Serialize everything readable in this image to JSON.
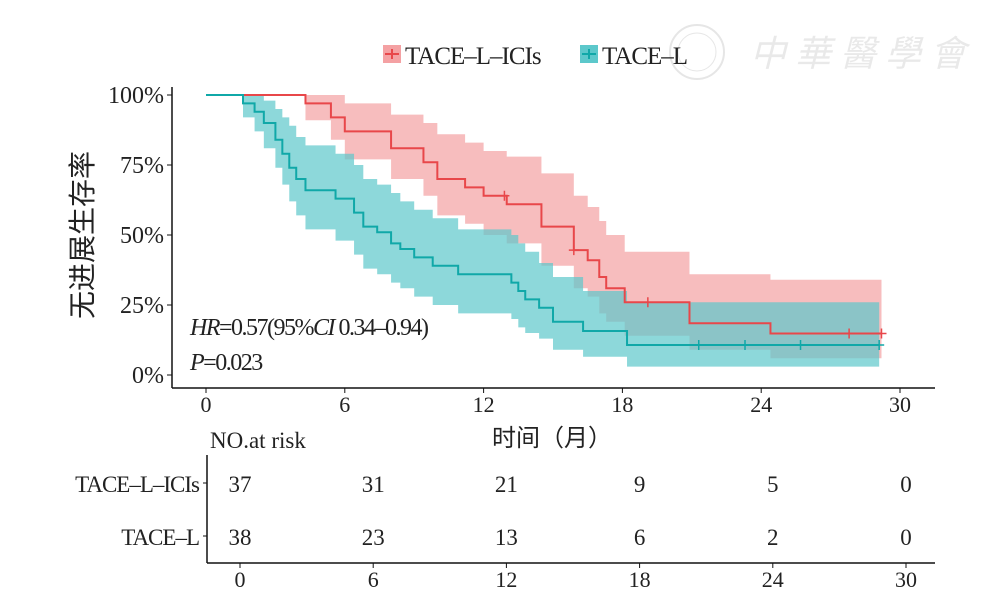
{
  "chart_data": {
    "type": "line",
    "subtype": "kaplan-meier",
    "title": "",
    "xlabel": "时间（月）",
    "ylabel": "无进展生存率",
    "xlim": [
      0,
      30
    ],
    "ylim": [
      0,
      100
    ],
    "x_ticks": [
      "0",
      "6",
      "12",
      "18",
      "24",
      "30"
    ],
    "x_tick_values": [
      0,
      6,
      12,
      18,
      24,
      30
    ],
    "y_ticks": [
      "0%",
      "25%",
      "50%",
      "75%",
      "100%"
    ],
    "y_tick_values": [
      0,
      25,
      50,
      75,
      100
    ],
    "grid": false,
    "legend_position": "top",
    "annotations": {
      "hr_label": "HR",
      "hr_text": "=0.57(95%",
      "ci_label": "CI",
      "ci_text": " 0.34–0.94)",
      "p_label": "P",
      "p_text": "=0.023"
    },
    "series": [
      {
        "name": "TACE–L–ICIs",
        "color": "#e8474a",
        "band_color": "#f4a1a3",
        "time": [
          0,
          4.3,
          5.4,
          6.0,
          8.0,
          9.4,
          10.0,
          11.2,
          12.0,
          13.0,
          14.5,
          15.9,
          16.5,
          17.0,
          17.3,
          18.1,
          20.9,
          24.4
        ],
        "surv": [
          100,
          97,
          92,
          87,
          81,
          76,
          70,
          67,
          64,
          61,
          53,
          44.6,
          41,
          35,
          31,
          26,
          18.5,
          14.8
        ],
        "lower": [
          100,
          91,
          84,
          77,
          70,
          64,
          57,
          54,
          50,
          47,
          39,
          31,
          28,
          22,
          19,
          14,
          9,
          6
        ],
        "upper": [
          100,
          100,
          100,
          97,
          93,
          90,
          86,
          83,
          80,
          78,
          72,
          64,
          60,
          55,
          50,
          44,
          36,
          34
        ],
        "end": 29.2,
        "censored": [
          12.9,
          15.9,
          19.1,
          27.8,
          29.2
        ]
      },
      {
        "name": "TACE–L",
        "color": "#10a8a8",
        "band_color": "#5cc8cb",
        "time": [
          0,
          1.6,
          2.1,
          2.5,
          3.0,
          3.3,
          3.6,
          3.9,
          4.3,
          5.6,
          6.4,
          6.8,
          7.4,
          8.0,
          8.4,
          9.0,
          9.8,
          10.9,
          13.2,
          13.5,
          13.8,
          14.4,
          15.0,
          16.3,
          18.2
        ],
        "surv": [
          100,
          97,
          94,
          90,
          84,
          79,
          74,
          70,
          66,
          63,
          58,
          53,
          51,
          47,
          45,
          42,
          39,
          36,
          33,
          30,
          27,
          24,
          19,
          15.7,
          10.7
        ],
        "lower": [
          100,
          92,
          87,
          81,
          74,
          68,
          62,
          57,
          52,
          48,
          43,
          38,
          36,
          33,
          31,
          28,
          25,
          22,
          20,
          17,
          15,
          13,
          9,
          6.5,
          3
        ],
        "upper": [
          100,
          100,
          100,
          98,
          95,
          92,
          89,
          85,
          82,
          79,
          75,
          70,
          68,
          65,
          62,
          59,
          56,
          52,
          50,
          47,
          44,
          40,
          35,
          30,
          26
        ],
        "end": 29.1,
        "censored": [
          21.3,
          23.3,
          25.7,
          29.1
        ]
      }
    ],
    "risk_table": {
      "title": "NO.at risk",
      "times": [
        "0",
        "6",
        "12",
        "18",
        "24",
        "30"
      ],
      "rows": [
        {
          "label": "TACE–L–ICIs",
          "values": [
            "37",
            "31",
            "21",
            "9",
            "5",
            "0"
          ]
        },
        {
          "label": "TACE–L",
          "values": [
            "38",
            "23",
            "13",
            "6",
            "2",
            "0"
          ]
        }
      ]
    }
  },
  "watermark": "中华医学会"
}
